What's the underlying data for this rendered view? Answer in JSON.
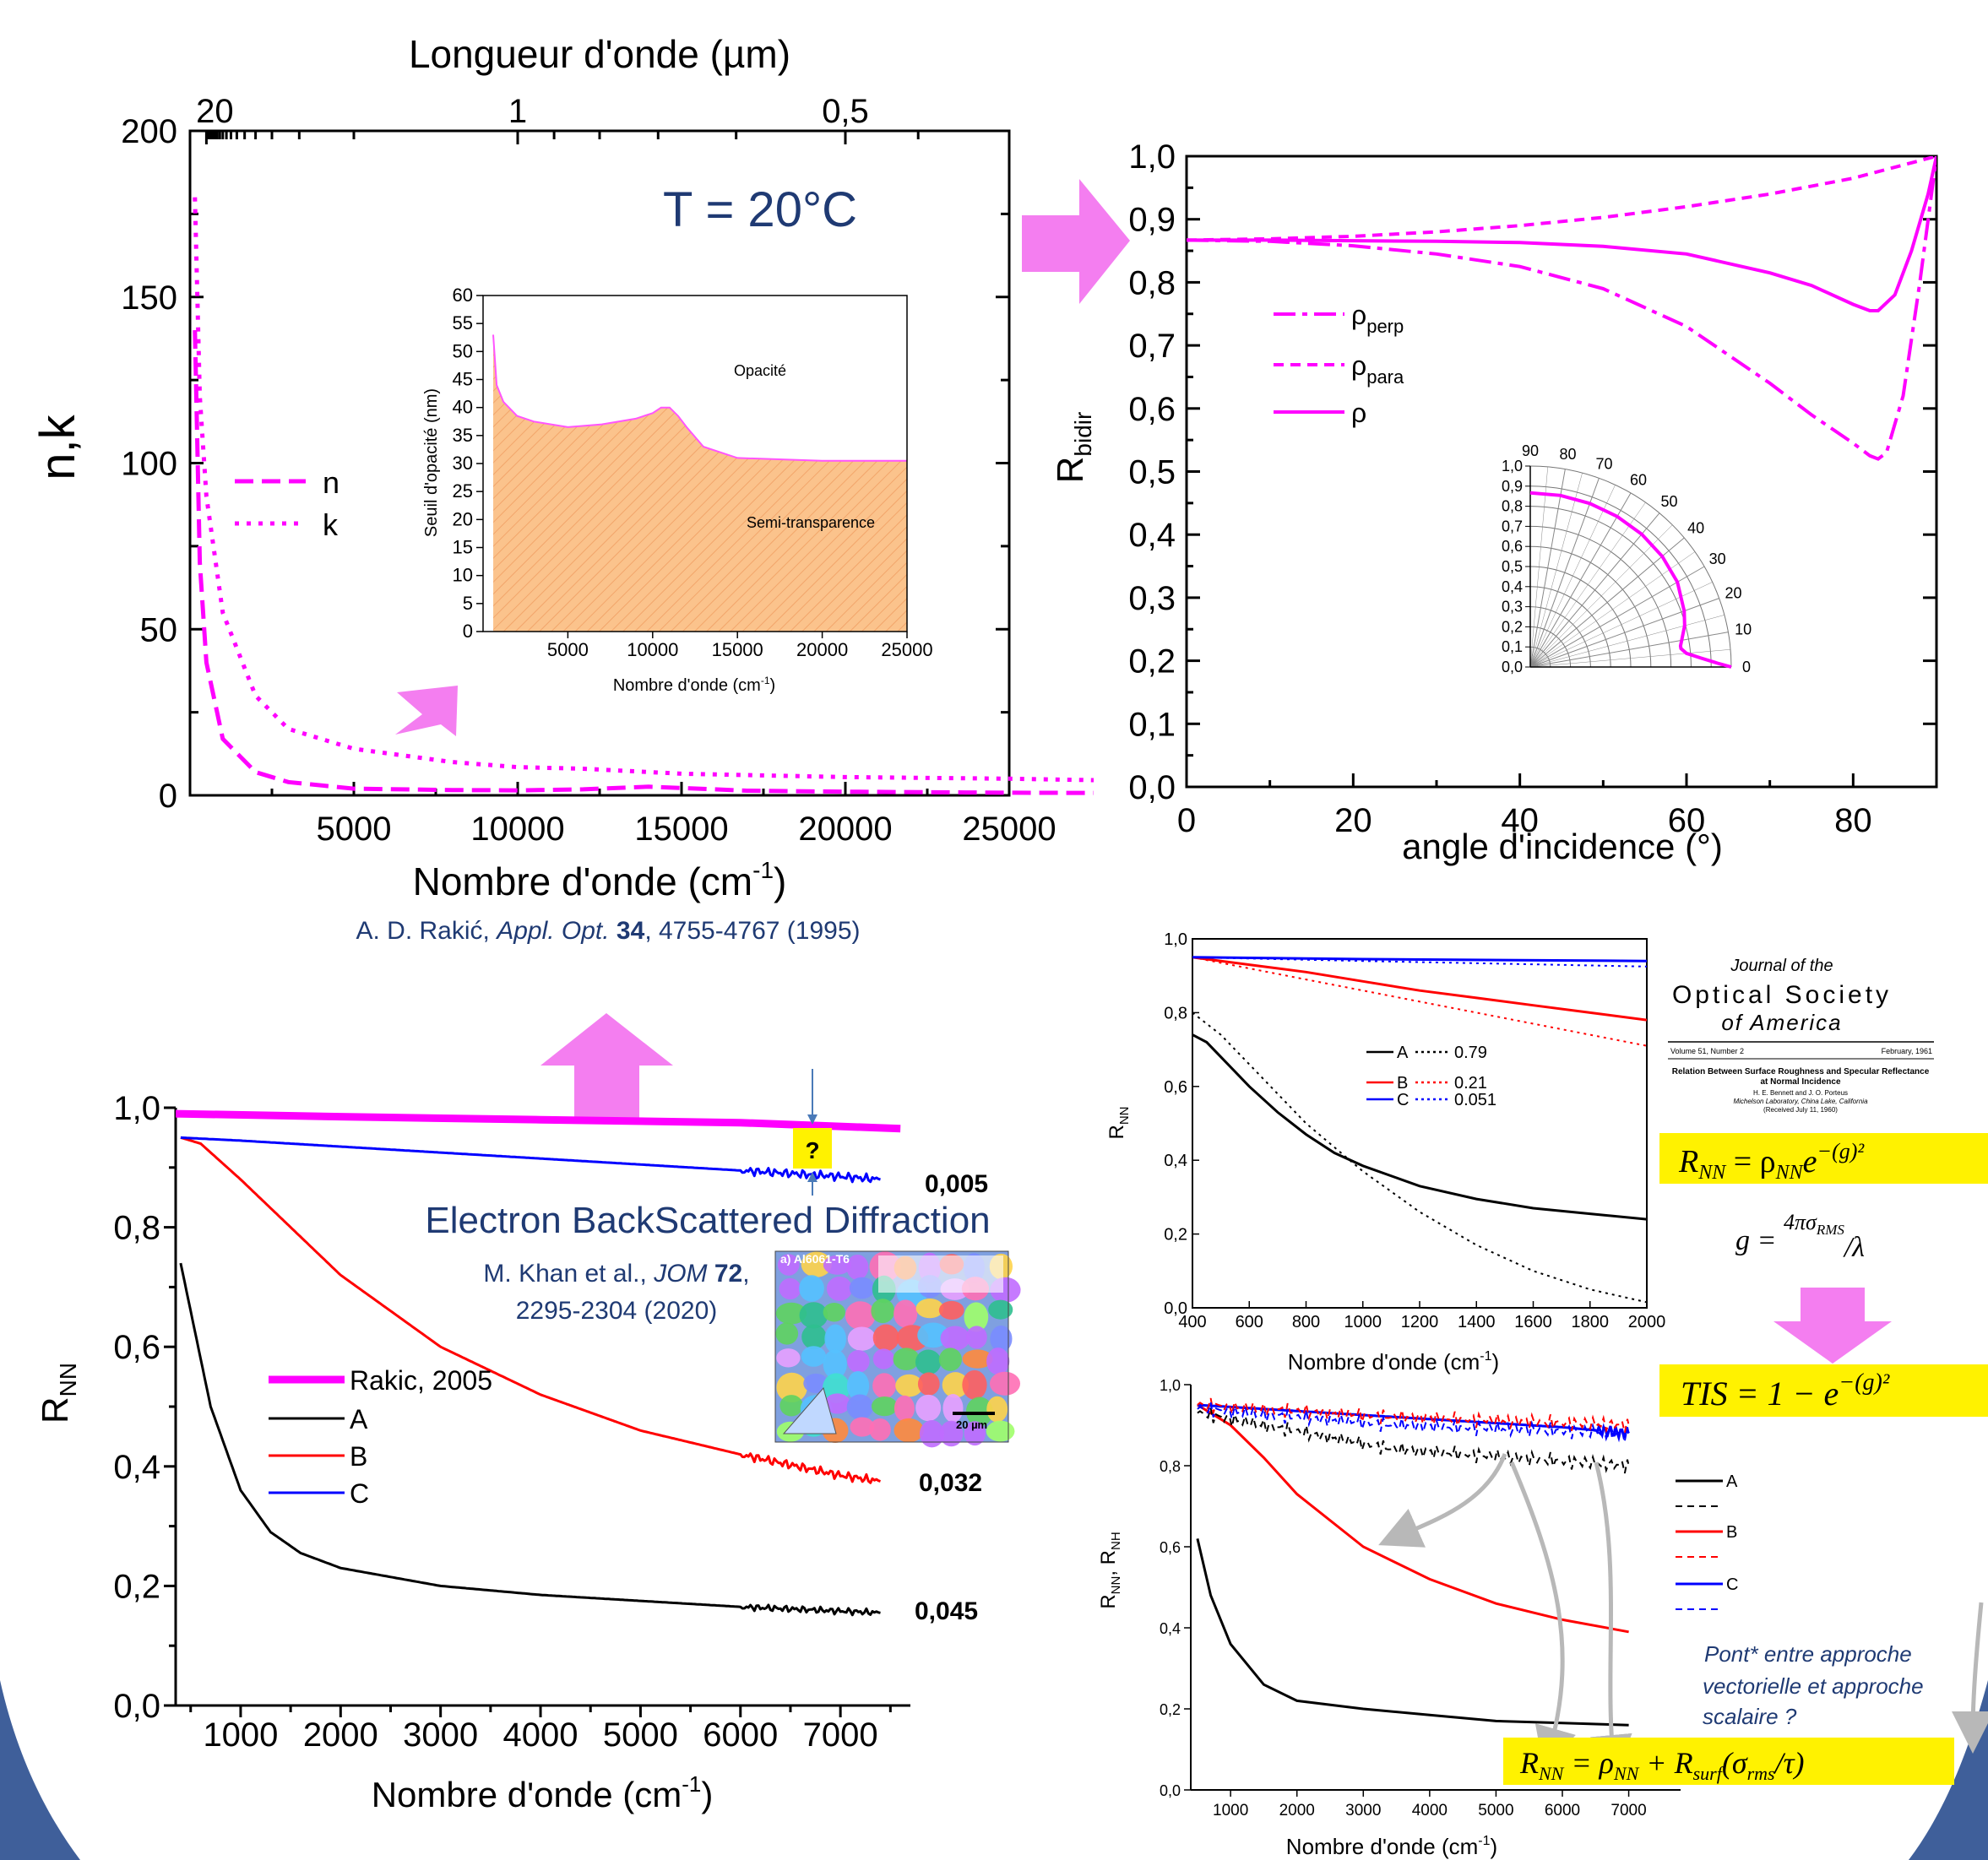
{
  "colors": {
    "magenta": "#ff00ff",
    "arrow": "#f47ef0",
    "black": "#000000",
    "red": "#ff0000",
    "blue": "#0000ff",
    "navy": "#1f3a73",
    "yellow": "#fff200",
    "fill_orange": "#fbc38c"
  },
  "panel_nk": {
    "top_axis_label": "Longueur d'onde (µm)",
    "top_ticks": [
      "20",
      "1",
      "0,5"
    ],
    "ylabel": "n,k",
    "xlabel": "Nombre d'onde (cm",
    "xlabel_sup": "-1",
    "xlabel_end": ")",
    "x_ticks": [
      "5000",
      "10000",
      "15000",
      "20000",
      "25000"
    ],
    "y_ticks": [
      "0",
      "50",
      "100",
      "150",
      "200"
    ],
    "temperature": "T = 20°C",
    "legend": [
      "n",
      "k"
    ],
    "reference": {
      "author": "A. D. Rakić, ",
      "journal": "Appl. Opt.",
      "volume": " 34",
      "pages": ", 4755-4767 (1995)"
    }
  },
  "inset_opacity": {
    "ylabel": "Seuil d'opacité (nm)",
    "xlabel": "Nombre d'onde (cm",
    "xlabel_sup": "-1",
    "xlabel_end": ")",
    "x_ticks": [
      "5000",
      "10000",
      "15000",
      "20000",
      "25000"
    ],
    "y_ticks": [
      "0",
      "5",
      "10",
      "15",
      "20",
      "25",
      "30",
      "35",
      "40",
      "45",
      "50",
      "55",
      "60"
    ],
    "region_upper": "Opacité",
    "region_lower": "Semi-transparence"
  },
  "panel_rbidir": {
    "ylabel": "R",
    "ylabel_sub": "bidir",
    "xlabel": "angle d'incidence (°)",
    "x_ticks": [
      "0",
      "20",
      "40",
      "60",
      "80"
    ],
    "y_ticks": [
      "0,0",
      "0,1",
      "0,2",
      "0,3",
      "0,4",
      "0,5",
      "0,6",
      "0,7",
      "0,8",
      "0,9",
      "1,0"
    ],
    "legend": [
      {
        "main": "ρ",
        "sub": "perp"
      },
      {
        "main": "ρ",
        "sub": "para"
      },
      {
        "main": "ρ",
        "sub": ""
      }
    ]
  },
  "inset_polar": {
    "angle_labels": [
      "90",
      "80",
      "70",
      "60",
      "50",
      "40",
      "30",
      "20",
      "10",
      "0"
    ],
    "radial_ticks": [
      "1,0",
      "0,9",
      "0,8",
      "0,7",
      "0,6",
      "0,5",
      "0,4",
      "0,3",
      "0,2",
      "0,1",
      "0,0"
    ]
  },
  "panel_rnn_main": {
    "ylabel": "R",
    "ylabel_sub": "NN",
    "xlabel": "Nombre d'onde (cm",
    "xlabel_sup": "-1",
    "xlabel_end": ")",
    "x_ticks": [
      "1000",
      "2000",
      "3000",
      "4000",
      "5000",
      "6000",
      "7000"
    ],
    "y_ticks": [
      "0,0",
      "0,2",
      "0,4",
      "0,6",
      "0,8",
      "1,0"
    ],
    "legend": [
      "Rakic, 2005",
      "A",
      "B",
      "C"
    ],
    "end_labels": [
      "0,005",
      "0,032",
      "0,045"
    ],
    "question": "?",
    "ebsd_title": "Electron BackScattered Diffraction",
    "ebsd_ref_line1_a": "M. Khan et al., ",
    "ebsd_ref_journal": "JOM",
    "ebsd_ref_vol": " 72",
    "ebsd_ref_line1_b": ",",
    "ebsd_ref_line2": "2295-2304 (2020)",
    "ebsd_image_title": "a) Al6061-T6",
    "ebsd_scale": "20 µm"
  },
  "panel_rnn_fit": {
    "ylabel": "R",
    "ylabel_sub": "NN",
    "xlabel": "Nombre d'onde (cm",
    "xlabel_sup": "-1",
    "xlabel_end": ")",
    "x_ticks": [
      "400",
      "600",
      "800",
      "1000",
      "1200",
      "1400",
      "1600",
      "1800",
      "2000"
    ],
    "y_ticks": [
      "0,0",
      "0,2",
      "0,4",
      "0,6",
      "0,8",
      "1,0"
    ],
    "legend": [
      {
        "name": "A",
        "value": "0.79"
      },
      {
        "name": "B",
        "value": "0.21"
      },
      {
        "name": "C",
        "value": "0.051"
      }
    ]
  },
  "panel_rnn_rnh": {
    "ylabel": "R",
    "ylabel_sub1": "NN",
    "ylabel_mid": ", R",
    "ylabel_sub2": "NH",
    "xlabel": "Nombre d'onde (cm",
    "xlabel_sup": "-1",
    "xlabel_end": ")",
    "x_ticks": [
      "1000",
      "2000",
      "3000",
      "4000",
      "5000",
      "6000",
      "7000"
    ],
    "y_ticks": [
      "0,0",
      "0,2",
      "0,4",
      "0,6",
      "0,8",
      "1,0"
    ],
    "legend": [
      "A",
      "B",
      "C"
    ]
  },
  "journal": {
    "line1": "Journal of the",
    "line2": "Optical Society",
    "line3": "of America",
    "issue": "Volume 51, Number 2",
    "date": "February, 1961",
    "article_title": "Relation Between Surface Roughness and Specular Reflectance",
    "article_title2": "at Normal Incidence",
    "authors": "H. E. Bennett and J. O. Porteus",
    "affil": "Michelson Laboratory, China Lake, California",
    "received": "(Received July 11, 1960)"
  },
  "formulas": {
    "f1_lhs": "R",
    "f1_lhs_sub": "NN",
    "f1_eq": " = ρ",
    "f1_rho_sub": "NN",
    "f1_e": "e",
    "f1_exp": "−(g)²",
    "g_lhs": "g = ",
    "g_num": "4πσ",
    "g_num_sub": "RMS",
    "g_den": "/λ",
    "tis": "TIS = 1 − e",
    "tis_exp": "−(g)²",
    "f3_lhs": "R",
    "f3_lhs_sub": "NN",
    "f3_eq": " = ρ",
    "f3_rho_sub": "NN",
    "f3_plus": " + R",
    "f3_rs_sub": "surf",
    "f3_arg": "(σ",
    "f3_arg_sub": "rms",
    "f3_arg_end": "/τ)",
    "bridge_text": [
      "Pont* entre approche",
      "vectorielle et approche",
      "scalaire ?"
    ]
  },
  "chart_data": [
    {
      "type": "line",
      "title": "",
      "xlabel": "Nombre d'onde (cm-1)",
      "ylabel": "n,k",
      "xlim": [
        0,
        28000
      ],
      "ylim": [
        0,
        200
      ],
      "series": [
        {
          "name": "n",
          "x": [
            150,
            300,
            500,
            1000,
            2000,
            3000,
            5000,
            8000,
            10000,
            12000,
            14000,
            15000,
            17000,
            20000,
            25000,
            28000
          ],
          "y": [
            140,
            70,
            40,
            17,
            7,
            4,
            2,
            1.6,
            1.5,
            1.8,
            2.6,
            2.2,
            1.4,
            1.1,
            0.8,
            0.7
          ]
        },
        {
          "name": "k",
          "x": [
            150,
            300,
            500,
            1000,
            2000,
            3000,
            5000,
            8000,
            10000,
            12000,
            15000,
            20000,
            25000,
            28000
          ],
          "y": [
            180,
            120,
            90,
            55,
            30,
            20,
            14,
            10,
            8.5,
            8,
            6.5,
            5.5,
            5,
            4.5
          ]
        }
      ]
    },
    {
      "type": "area",
      "title": "",
      "xlabel": "Nombre d'onde (cm-1)",
      "ylabel": "Seuil d'opacité (nm)",
      "xlim": [
        0,
        25000
      ],
      "ylim": [
        0,
        60
      ],
      "series": [
        {
          "name": "",
          "x": [
            600,
            800,
            1200,
            2000,
            3000,
            5000,
            7000,
            9000,
            10000,
            10500,
            11000,
            11500,
            12000,
            13000,
            15000,
            20000,
            25000
          ],
          "y": [
            53,
            44,
            41,
            38.5,
            37.5,
            36.5,
            37,
            38,
            39,
            40,
            40,
            38.5,
            36.5,
            33,
            31,
            30.5,
            30.5
          ]
        }
      ]
    },
    {
      "type": "line",
      "title": "",
      "xlabel": "angle d'incidence (°)",
      "ylabel": "Rbidir",
      "xlim": [
        0,
        90
      ],
      "ylim": [
        0,
        1
      ],
      "series": [
        {
          "name": "ρperp",
          "x": [
            0,
            10,
            20,
            30,
            40,
            50,
            60,
            70,
            75,
            80,
            82,
            83,
            84,
            86,
            88,
            90
          ],
          "y": [
            0.867,
            0.865,
            0.858,
            0.845,
            0.825,
            0.79,
            0.73,
            0.64,
            0.59,
            0.545,
            0.525,
            0.52,
            0.53,
            0.62,
            0.8,
            1.0
          ]
        },
        {
          "name": "ρpara",
          "x": [
            0,
            10,
            20,
            30,
            40,
            50,
            60,
            70,
            80,
            90
          ],
          "y": [
            0.867,
            0.869,
            0.873,
            0.88,
            0.89,
            0.903,
            0.92,
            0.94,
            0.965,
            1.0
          ]
        },
        {
          "name": "ρ",
          "x": [
            0,
            10,
            20,
            30,
            40,
            50,
            60,
            70,
            75,
            80,
            82,
            83,
            85,
            87,
            89,
            90
          ],
          "y": [
            0.867,
            0.867,
            0.866,
            0.865,
            0.863,
            0.857,
            0.845,
            0.815,
            0.795,
            0.765,
            0.755,
            0.755,
            0.78,
            0.85,
            0.94,
            1.0
          ]
        }
      ]
    },
    {
      "type": "line",
      "title": "",
      "xlabel": "Nombre d'onde (cm-1)",
      "ylabel": "RNN",
      "xlim": [
        350,
        7700
      ],
      "ylim": [
        0,
        1
      ],
      "series": [
        {
          "name": "Rakic, 2005",
          "x": [
            350,
            2000,
            4000,
            6000,
            7600
          ],
          "y": [
            0.99,
            0.985,
            0.98,
            0.975,
            0.965
          ]
        },
        {
          "name": "A",
          "x": [
            400,
            500,
            700,
            1000,
            1300,
            1600,
            2000,
            3000,
            4000,
            5000,
            6000,
            7000,
            7400
          ],
          "y": [
            0.74,
            0.66,
            0.5,
            0.36,
            0.29,
            0.255,
            0.23,
            0.2,
            0.185,
            0.175,
            0.165,
            0.158,
            0.155
          ]
        },
        {
          "name": "B",
          "x": [
            400,
            600,
            1000,
            1500,
            2000,
            3000,
            4000,
            5000,
            6000,
            7000,
            7400
          ],
          "y": [
            0.95,
            0.94,
            0.88,
            0.8,
            0.72,
            0.6,
            0.52,
            0.46,
            0.42,
            0.385,
            0.375
          ]
        },
        {
          "name": "C",
          "x": [
            400,
            1000,
            2000,
            3000,
            4000,
            5000,
            6000,
            7000,
            7400
          ],
          "y": [
            0.95,
            0.945,
            0.935,
            0.925,
            0.915,
            0.905,
            0.895,
            0.885,
            0.88
          ]
        }
      ],
      "annotations": [
        "0,005",
        "0,032",
        "0,045"
      ]
    },
    {
      "type": "line",
      "title": "",
      "xlabel": "Nombre d'onde (cm-1)",
      "ylabel": "RNN",
      "xlim": [
        400,
        2000
      ],
      "ylim": [
        0,
        1
      ],
      "series": [
        {
          "name": "A",
          "x": [
            400,
            450,
            500,
            600,
            700,
            800,
            900,
            1000,
            1200,
            1400,
            1600,
            1800,
            2000
          ],
          "y": [
            0.74,
            0.72,
            0.68,
            0.6,
            0.53,
            0.47,
            0.42,
            0.385,
            0.33,
            0.295,
            0.27,
            0.255,
            0.24
          ]
        },
        {
          "name": "0.79",
          "x": [
            400,
            500,
            600,
            800,
            1000,
            1200,
            1400,
            1600,
            1800,
            2000
          ],
          "y": [
            0.8,
            0.74,
            0.66,
            0.5,
            0.37,
            0.26,
            0.17,
            0.1,
            0.05,
            0.015
          ]
        },
        {
          "name": "B",
          "x": [
            400,
            600,
            800,
            1000,
            1200,
            1400,
            1600,
            1800,
            2000
          ],
          "y": [
            0.95,
            0.93,
            0.91,
            0.885,
            0.86,
            0.84,
            0.82,
            0.8,
            0.78
          ]
        },
        {
          "name": "0.21",
          "x": [
            400,
            600,
            800,
            1000,
            1200,
            1400,
            1600,
            1800,
            2000
          ],
          "y": [
            0.95,
            0.92,
            0.89,
            0.86,
            0.83,
            0.8,
            0.77,
            0.74,
            0.71
          ]
        },
        {
          "name": "C",
          "x": [
            400,
            1000,
            2000
          ],
          "y": [
            0.95,
            0.945,
            0.94
          ]
        },
        {
          "name": "0.051",
          "x": [
            400,
            1000,
            2000
          ],
          "y": [
            0.95,
            0.94,
            0.925
          ]
        }
      ]
    },
    {
      "type": "line",
      "title": "",
      "xlabel": "Nombre d'onde (cm-1)",
      "ylabel": "RNN, RNH",
      "xlim": [
        400,
        7400
      ],
      "ylim": [
        0,
        1
      ],
      "series": [
        {
          "name": "A",
          "x": [
            500,
            700,
            1000,
            1500,
            2000,
            3000,
            4000,
            5000,
            6000,
            7000
          ],
          "y": [
            0.62,
            0.48,
            0.36,
            0.26,
            0.22,
            0.2,
            0.185,
            0.17,
            0.165,
            0.16
          ]
        },
        {
          "name": "B",
          "x": [
            500,
            1000,
            1500,
            2000,
            3000,
            4000,
            5000,
            6000,
            7000
          ],
          "y": [
            0.95,
            0.9,
            0.82,
            0.73,
            0.6,
            0.52,
            0.46,
            0.42,
            0.39
          ]
        },
        {
          "name": "C",
          "x": [
            500,
            2000,
            4000,
            6000,
            7000
          ],
          "y": [
            0.95,
            0.935,
            0.915,
            0.895,
            0.88
          ]
        }
      ]
    }
  ]
}
